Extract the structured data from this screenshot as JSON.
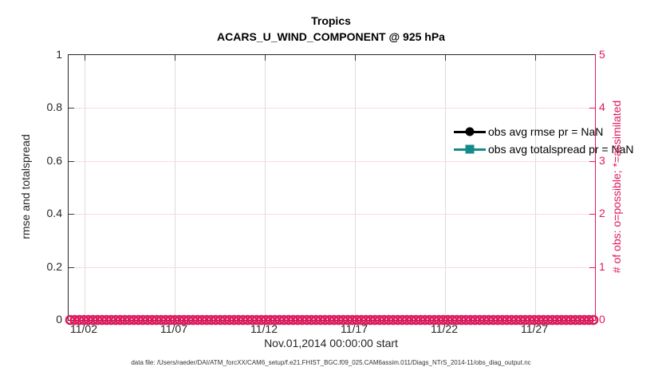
{
  "title": {
    "line1": "Tropics",
    "line2": "ACARS_U_WIND_COMPONENT @ 925 hPa"
  },
  "axes": {
    "left": {
      "label": "rmse and totalspread",
      "ticks": [
        "0",
        "0.2",
        "0.4",
        "0.6",
        "0.8",
        "1"
      ],
      "range": [
        0,
        1
      ],
      "color": "#262626"
    },
    "right": {
      "label": "# of obs: o=possible; *=assimilated",
      "ticks": [
        "0",
        "1",
        "2",
        "3",
        "4",
        "5"
      ],
      "range": [
        0,
        5
      ],
      "color": "#e0195f"
    },
    "x": {
      "label": "Nov.01,2014 00:00:00 start",
      "ticks": [
        "11/02",
        "11/07",
        "11/12",
        "11/17",
        "11/22",
        "11/27"
      ]
    }
  },
  "legend": [
    {
      "label": "obs avg rmse pr = NaN",
      "color": "#000000",
      "marker": "circle"
    },
    {
      "label": "obs avg totalspread pr = NaN",
      "color": "#148a8a",
      "marker": "square"
    }
  ],
  "footer": "data file: /Users/raeder/DAI/ATM_forcXX/CAM6_setup/f.e21.FHIST_BGC.f09_025.CAM6assim.011/Diags_NTrS_2014-11/obs_diag_output.nc",
  "chart_data": {
    "type": "line",
    "title": "Tropics",
    "subtitle": "ACARS_U_WIND_COMPONENT @ 925 hPa",
    "xlabel": "Nov.01,2014 00:00:00 start",
    "x_tick_labels": [
      "11/02",
      "11/07",
      "11/12",
      "11/17",
      "11/22",
      "11/27"
    ],
    "x_range": [
      "2014-11-01",
      "2014-11-30"
    ],
    "y_left": {
      "label": "rmse and totalspread",
      "lim": [
        0,
        1
      ],
      "ticks": [
        0,
        0.2,
        0.4,
        0.6,
        0.8,
        1
      ]
    },
    "y_right": {
      "label": "# of obs: o=possible; *=assimilated",
      "lim": [
        0,
        5
      ],
      "ticks": [
        0,
        1,
        2,
        3,
        4,
        5
      ]
    },
    "grid": true,
    "legend_position": "top-right-inside",
    "series": [
      {
        "name": "obs avg rmse pr = NaN",
        "axis": "left",
        "color": "#000000",
        "marker": "filled-circle",
        "values": "NaN",
        "points_plotted": 0
      },
      {
        "name": "obs avg totalspread pr = NaN",
        "axis": "left",
        "color": "#148a8a",
        "marker": "filled-square",
        "values": "NaN",
        "points_plotted": 0
      },
      {
        "name": "possible obs count (o markers)",
        "axis": "right",
        "color": "#e0195f",
        "marker": "open-circle",
        "n_points": 116,
        "cadence_hours": 6,
        "constant_value": 0
      }
    ]
  }
}
